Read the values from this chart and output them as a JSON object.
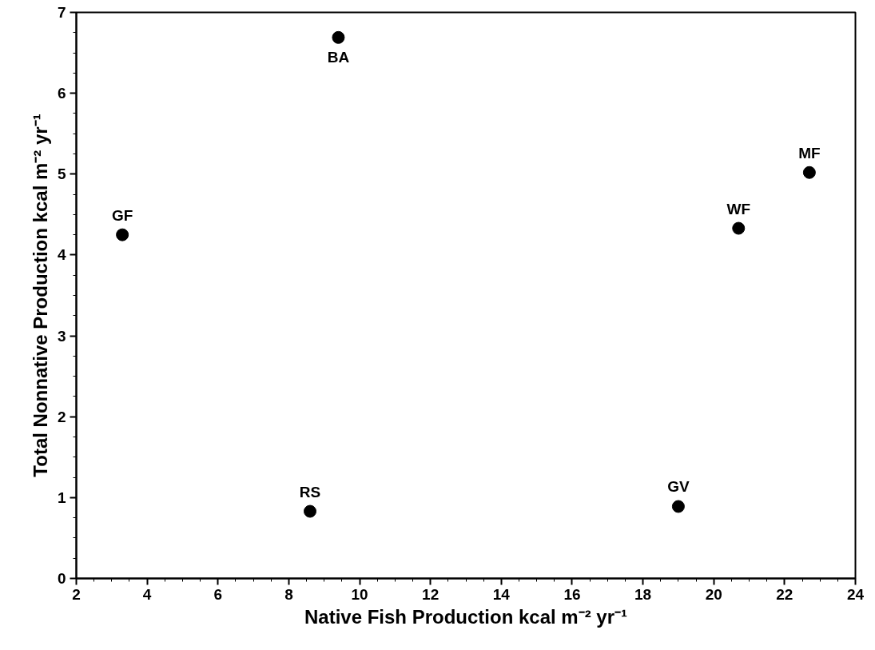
{
  "chart_data": {
    "type": "scatter",
    "xlabel": "Native Fish Production kcal m⁻² yr⁻¹",
    "ylabel": "Total Nonnative Production kcal m⁻² yr⁻¹",
    "x": [
      3.3,
      9.4,
      8.6,
      19.0,
      20.7,
      22.7
    ],
    "series": [
      {
        "color": "#000000",
        "values": [
          4.25,
          6.69,
          0.83,
          0.89,
          4.33,
          5.02
        ]
      }
    ],
    "marker": "circle",
    "xlim": [
      2,
      24
    ],
    "xticks": [
      2,
      4,
      6,
      8,
      10,
      12,
      14,
      16,
      18,
      20,
      22,
      24
    ],
    "ylim": [
      0,
      7
    ],
    "yticks": [
      0,
      1,
      2,
      3,
      4,
      5,
      6,
      7
    ],
    "grid": false,
    "annotations": [
      {
        "text": "GF",
        "x": 3.3,
        "y": 4.25
      },
      {
        "text": "BA",
        "x": 9.4,
        "y": 6.69
      },
      {
        "text": "RS",
        "x": 8.6,
        "y": 0.83
      },
      {
        "text": "GV",
        "x": 19.0,
        "y": 0.89
      },
      {
        "text": "WF",
        "x": 20.7,
        "y": 4.33
      },
      {
        "text": "MF",
        "x": 22.7,
        "y": 5.02
      }
    ]
  }
}
